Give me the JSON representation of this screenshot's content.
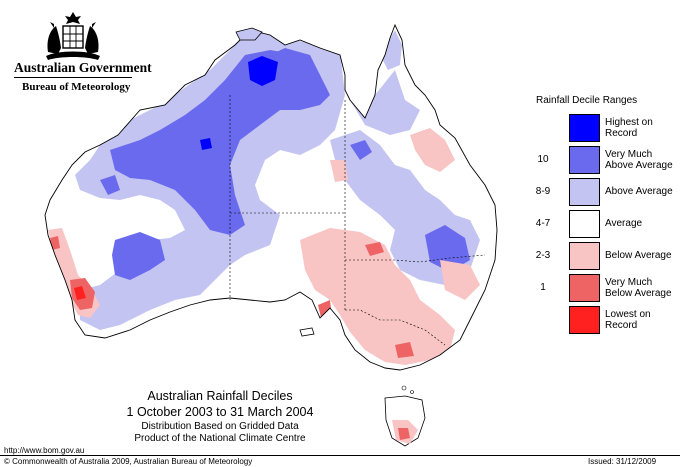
{
  "header": {
    "government": "Australian Government",
    "bureau": "Bureau of Meteorology",
    "crest_icon": "commonwealth-coat-of-arms-icon"
  },
  "legend": {
    "title": "Rainfall Decile Ranges",
    "items": [
      {
        "range": "",
        "category": "Highest on Record",
        "color": "#0000ff"
      },
      {
        "range": "10",
        "category": "Very Much Above Average",
        "color": "#6a6aee"
      },
      {
        "range": "8-9",
        "category": "Above Average",
        "color": "#c4c4f2"
      },
      {
        "range": "4-7",
        "category": "Average",
        "color": "#ffffff"
      },
      {
        "range": "2-3",
        "category": "Below Average",
        "color": "#f8c4c4"
      },
      {
        "range": "1",
        "category": "Very Much Below Average",
        "color": "#ee6464"
      },
      {
        "range": "",
        "category": "Lowest on Record",
        "color": "#ff2020"
      }
    ]
  },
  "map": {
    "title": "Australian Rainfall Deciles",
    "period": "1 October 2003 to 31 March 2004",
    "note_line1": "Distribution Based on Gridded Data",
    "note_line2": "Product of the National Climate Centre"
  },
  "footer": {
    "url": "http://www.bom.gov.au",
    "copyright": "© Commonwealth of Australia 2009, Australian Bureau of Meteorology",
    "issued": "Issued: 31/12/2009"
  }
}
